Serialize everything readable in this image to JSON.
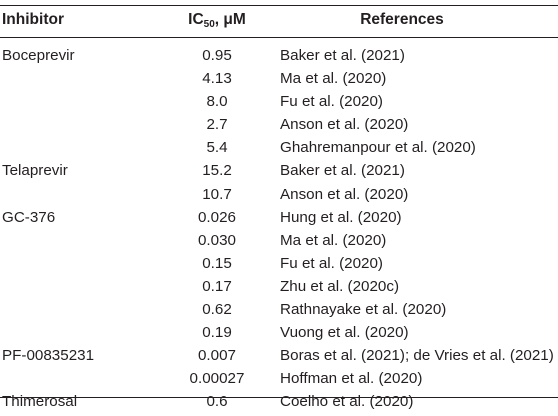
{
  "table": {
    "headers": {
      "inhibitor": "Inhibitor",
      "ic50_main": "IC",
      "ic50_sub": "50",
      "ic50_unit": ", μM",
      "references": "References"
    },
    "rows": [
      {
        "inhibitor": "Boceprevir",
        "ic50": "0.95",
        "reference": "Baker et al. (2021)"
      },
      {
        "inhibitor": "",
        "ic50": "4.13",
        "reference": "Ma et al. (2020)"
      },
      {
        "inhibitor": "",
        "ic50": "8.0",
        "reference": "Fu et al. (2020)"
      },
      {
        "inhibitor": "",
        "ic50": "2.7",
        "reference": "Anson et al. (2020)"
      },
      {
        "inhibitor": "",
        "ic50": "5.4",
        "reference": "Ghahremanpour et al. (2020)"
      },
      {
        "inhibitor": "Telaprevir",
        "ic50": "15.2",
        "reference": "Baker et al. (2021)"
      },
      {
        "inhibitor": "",
        "ic50": "10.7",
        "reference": "Anson et al. (2020)"
      },
      {
        "inhibitor": "GC-376",
        "ic50": "0.026",
        "reference": "Hung et al. (2020)"
      },
      {
        "inhibitor": "",
        "ic50": "0.030",
        "reference": "Ma et al. (2020)"
      },
      {
        "inhibitor": "",
        "ic50": "0.15",
        "reference": "Fu et al. (2020)"
      },
      {
        "inhibitor": "",
        "ic50": "0.17",
        "reference": "Zhu et al. (2020c)"
      },
      {
        "inhibitor": "",
        "ic50": "0.62",
        "reference": "Rathnayake et al. (2020)"
      },
      {
        "inhibitor": "",
        "ic50": "0.19",
        "reference": "Vuong et al. (2020)"
      },
      {
        "inhibitor": "PF-00835231",
        "ic50": "0.007",
        "reference": "Boras et al. (2021); de Vries et al. (2021)"
      },
      {
        "inhibitor": "",
        "ic50": "0.00027",
        "reference": "Hoffman et al. (2020)"
      },
      {
        "inhibitor": "Thimerosal",
        "ic50": "0.6",
        "reference": "Coelho et al. (2020)"
      }
    ]
  }
}
